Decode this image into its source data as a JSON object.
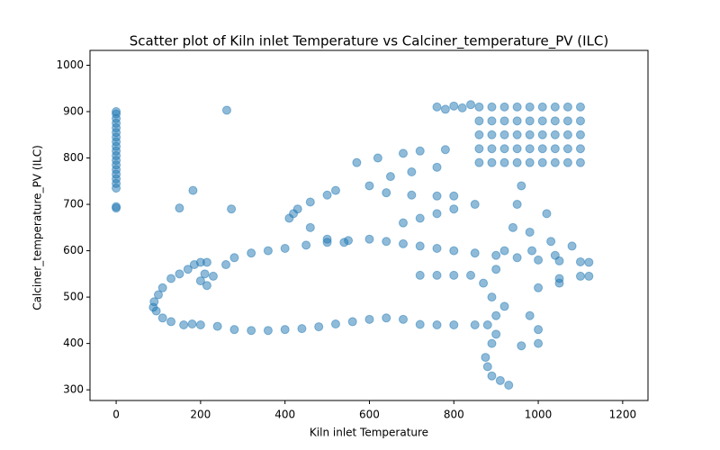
{
  "chart_data": {
    "type": "scatter",
    "title": "Scatter plot of Kiln inlet Temperature vs Calciner_temperature_PV (ILC)",
    "x_label": "Kiln inlet Temperature",
    "y_label": "Calciner_temperature_PV (ILC)",
    "color": "#1f77b4",
    "xlim": [
      -62,
      1260
    ],
    "ylim": [
      277,
      1032
    ],
    "xticks": [
      0,
      200,
      400,
      600,
      800,
      1000,
      1200
    ],
    "yticks": [
      300,
      400,
      500,
      600,
      700,
      800,
      900,
      1000
    ],
    "x": [
      0,
      0,
      0,
      0,
      0,
      0,
      0,
      0,
      0,
      0,
      0,
      0,
      0,
      0,
      0,
      0,
      0,
      0,
      0,
      0,
      262,
      182,
      150,
      273,
      850,
      800,
      760,
      720,
      680,
      640,
      600,
      560,
      520,
      480,
      440,
      400,
      360,
      320,
      280,
      240,
      200,
      180,
      160,
      130,
      110,
      95,
      88,
      90,
      100,
      110,
      130,
      150,
      170,
      185,
      200,
      215,
      210,
      200,
      215,
      230,
      260,
      280,
      320,
      360,
      400,
      450,
      500,
      550,
      600,
      640,
      680,
      720,
      760,
      800,
      850,
      900,
      950,
      1000,
      1050,
      1100,
      1120,
      410,
      420,
      430,
      460,
      500,
      520,
      460,
      500,
      540,
      570,
      620,
      680,
      720,
      780,
      600,
      650,
      700,
      760,
      640,
      700,
      760,
      800,
      680,
      720,
      760,
      800,
      850,
      860,
      860,
      860,
      860,
      860,
      890,
      890,
      890,
      890,
      890,
      920,
      920,
      920,
      920,
      920,
      950,
      950,
      950,
      950,
      950,
      980,
      980,
      980,
      980,
      980,
      1010,
      1010,
      1010,
      1010,
      1010,
      1040,
      1040,
      1040,
      1040,
      1040,
      1070,
      1070,
      1070,
      1070,
      1070,
      1100,
      1100,
      1100,
      1100,
      1100,
      760,
      780,
      800,
      820,
      840,
      930,
      910,
      890,
      880,
      875,
      890,
      900,
      880,
      900,
      920,
      890,
      870,
      900,
      920,
      940,
      950,
      960,
      980,
      985,
      1020,
      1030,
      1080,
      1040,
      1000,
      1050,
      1100,
      980,
      1000,
      960,
      1000,
      1050,
      1120,
      720,
      760,
      800,
      840
    ],
    "values": [
      692,
      695,
      735,
      745,
      755,
      765,
      775,
      785,
      795,
      805,
      815,
      825,
      835,
      845,
      855,
      865,
      875,
      885,
      895,
      900,
      903,
      730,
      692,
      690,
      440,
      440,
      440,
      441,
      452,
      455,
      452,
      447,
      442,
      436,
      432,
      430,
      428,
      428,
      430,
      437,
      440,
      442,
      440,
      447,
      455,
      470,
      478,
      490,
      505,
      520,
      540,
      550,
      560,
      570,
      575,
      575,
      550,
      535,
      525,
      545,
      570,
      585,
      595,
      600,
      605,
      612,
      618,
      622,
      625,
      620,
      615,
      610,
      605,
      600,
      595,
      590,
      585,
      580,
      578,
      576,
      575,
      670,
      680,
      690,
      705,
      720,
      730,
      650,
      625,
      618,
      790,
      800,
      810,
      815,
      818,
      740,
      760,
      770,
      780,
      725,
      720,
      718,
      718,
      660,
      670,
      680,
      690,
      700,
      790,
      820,
      850,
      880,
      910,
      790,
      820,
      850,
      880,
      910,
      790,
      820,
      850,
      880,
      910,
      790,
      820,
      850,
      880,
      910,
      790,
      820,
      850,
      880,
      910,
      790,
      820,
      850,
      880,
      910,
      790,
      820,
      850,
      880,
      910,
      790,
      820,
      850,
      880,
      910,
      790,
      820,
      850,
      880,
      910,
      910,
      905,
      912,
      908,
      915,
      310,
      320,
      330,
      350,
      370,
      400,
      420,
      440,
      460,
      480,
      500,
      530,
      560,
      600,
      650,
      700,
      740,
      640,
      600,
      680,
      620,
      610,
      590,
      520,
      530,
      545,
      460,
      430,
      395,
      400,
      540,
      545,
      547,
      547,
      547,
      547
    ]
  }
}
